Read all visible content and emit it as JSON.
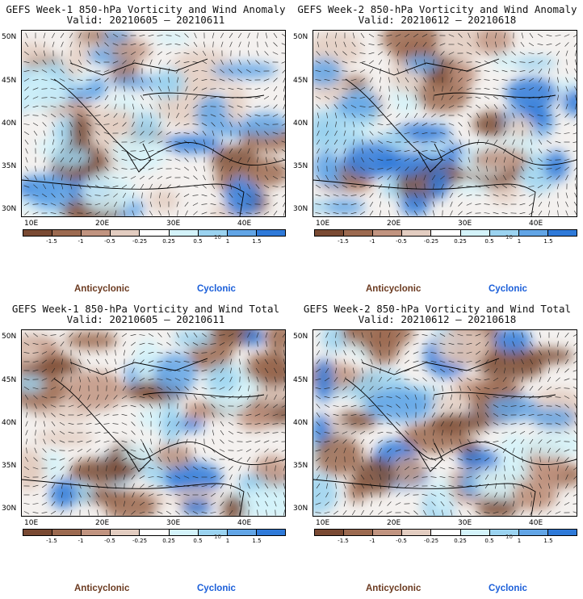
{
  "panels": [
    {
      "title": "GEFS Week-1 850-hPa Vorticity and Wind Anomaly",
      "valid": "Valid: 20210605 – 20210611"
    },
    {
      "title": "GEFS Week-2 850-hPa Vorticity and Wind Anomaly",
      "valid": "Valid: 20210612 – 20210618"
    },
    {
      "title": "GEFS Week-1 850-hPa Vorticity and Wind Total",
      "valid": "Valid: 20210605 – 20210611"
    },
    {
      "title": "GEFS Week-2 850-hPa Vorticity and Wind Total",
      "valid": "Valid: 20210612 – 20210618"
    }
  ],
  "lat_labels": [
    "50N",
    "45N",
    "40N",
    "35N",
    "30N"
  ],
  "lon_labels": [
    "10E",
    "20E",
    "30E",
    "40E"
  ],
  "colorbar": {
    "ticks": [
      "-1.5",
      "-1",
      "-0.5",
      "-0.25",
      "0.25",
      "0.5",
      "1",
      "1.5"
    ],
    "scale_label": "10",
    "colors": [
      "#7a4a33",
      "#9c6a50",
      "#c19480",
      "#e3cdc1",
      "#ffffff",
      "#d4f3fa",
      "#9bd3f0",
      "#62a5e6",
      "#2f7ad9"
    ]
  },
  "legend": {
    "anticyclonic": "Anticyclonic",
    "cyclonic": "Cyclonic",
    "anticyclonic_color": "#6b3a20",
    "cyclonic_color": "#1a5ed9"
  }
}
